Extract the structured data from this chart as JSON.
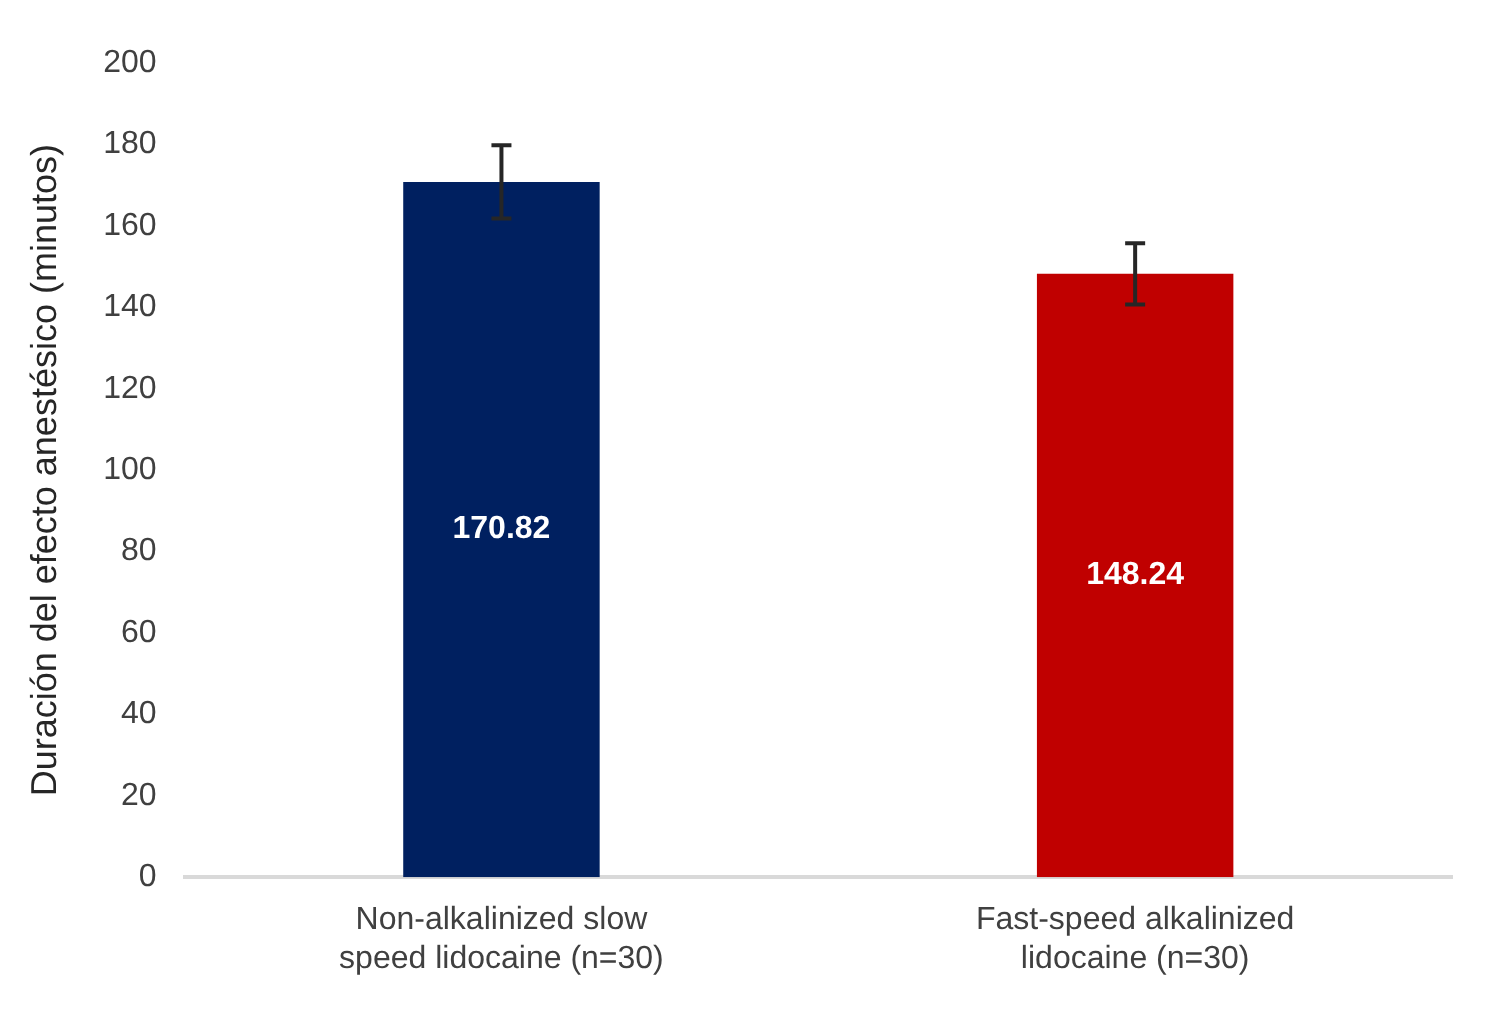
{
  "chart_data": {
    "type": "bar",
    "ylabel": "Duración del efecto anestésico (minutos)",
    "categories": [
      "Non-alkalinized slow speed lidocaine (n=30)",
      "Fast-speed alkalinized lidocaine (n=30)"
    ],
    "values": [
      170.82,
      148.24
    ],
    "colors": [
      "#002060",
      "#c00000"
    ],
    "errors": [
      9,
      7.5
    ],
    "ylim": [
      0,
      200
    ],
    "yticks": [
      0,
      20,
      40,
      60,
      80,
      100,
      120,
      140,
      160,
      180,
      200
    ],
    "grid": false,
    "data_labels": true
  }
}
